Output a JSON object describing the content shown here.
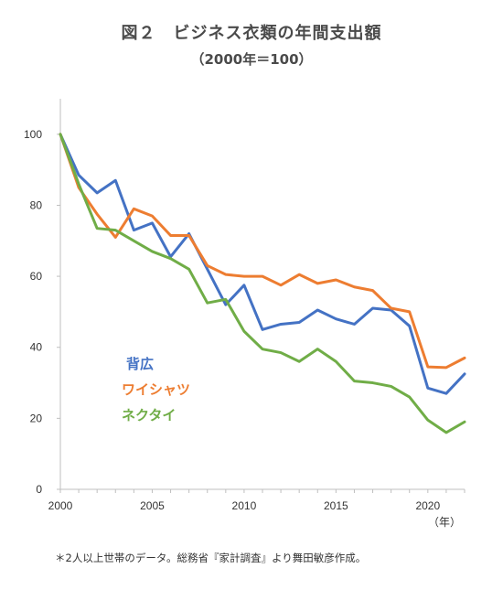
{
  "chart_data": {
    "type": "line",
    "title": "図２　ビジネス衣類の年間支出額",
    "subtitle": "（2000年＝100）",
    "x_unit_label": "（年）",
    "source_note": "＊2人以上世帯のデータ。総務省『家計調査』より舞田敏彦作成。",
    "xlim": [
      2000,
      2022
    ],
    "ylim": [
      0,
      110
    ],
    "x_ticks": [
      2000,
      2005,
      2010,
      2015,
      2020
    ],
    "y_ticks": [
      0,
      20,
      40,
      60,
      80,
      100
    ],
    "grid": false,
    "x": [
      2000,
      2001,
      2002,
      2003,
      2004,
      2005,
      2006,
      2007,
      2008,
      2009,
      2010,
      2011,
      2012,
      2013,
      2014,
      2015,
      2016,
      2017,
      2018,
      2019,
      2020,
      2021,
      2022
    ],
    "series": [
      {
        "name": "背広",
        "color": "#4472c4",
        "values": [
          100,
          88.5,
          83.5,
          87,
          73,
          75,
          65.5,
          72,
          62,
          52,
          57.5,
          45,
          46.5,
          47,
          50.5,
          48,
          46.5,
          51,
          50.5,
          46,
          28.5,
          27,
          32.5
        ]
      },
      {
        "name": "ワイシャツ",
        "color": "#ed7d31",
        "values": [
          100,
          85,
          77.5,
          71,
          79,
          77,
          71.5,
          71.5,
          63,
          60.5,
          60,
          60,
          57.5,
          60.5,
          58,
          59,
          57,
          56,
          51,
          50,
          34.5,
          34.3,
          37
        ]
      },
      {
        "name": "ネクタイ",
        "color": "#70ad47",
        "values": [
          100,
          86,
          73.5,
          73,
          70,
          67,
          65,
          62,
          52.5,
          53.5,
          44.5,
          39.5,
          38.5,
          36,
          39.5,
          36,
          30.5,
          30,
          29,
          26,
          19.5,
          16,
          19
        ]
      }
    ]
  }
}
